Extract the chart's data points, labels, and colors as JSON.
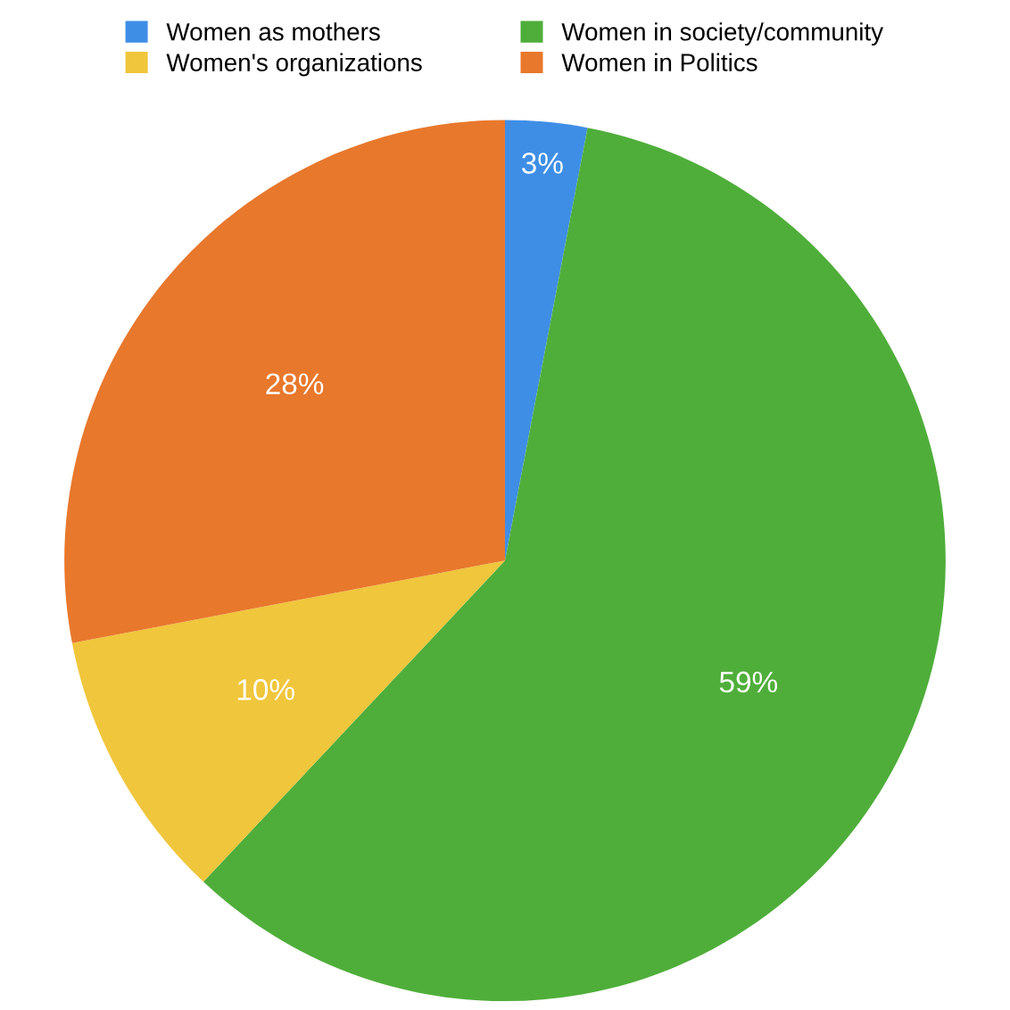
{
  "chart_data": {
    "type": "pie",
    "categories": [
      "Women as mothers",
      "Women in society/community",
      "Women's organizations",
      "Women in Politics"
    ],
    "values": [
      3,
      59,
      10,
      28
    ],
    "colors": [
      "#3f8ee6",
      "#4fae3a",
      "#f0c63c",
      "#e8782c"
    ],
    "value_labels": [
      "3%",
      "59%",
      "10%",
      "28%"
    ],
    "legend": "top"
  }
}
